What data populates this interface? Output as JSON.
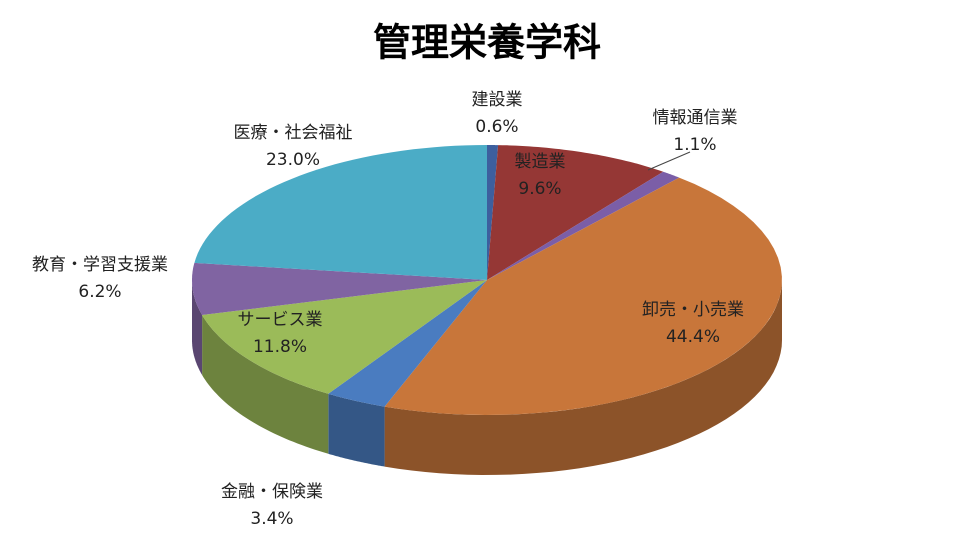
{
  "chart_data": {
    "type": "pie3d",
    "title": "管理栄養学科",
    "categories": [
      "建設業",
      "製造業",
      "情報通信業",
      "卸売・小売業",
      "金融・保険業",
      "サービス業",
      "教育・学習支援業",
      "医療・社会福祉"
    ],
    "values": [
      0.6,
      9.6,
      1.1,
      44.4,
      3.4,
      11.8,
      6.2,
      23.0
    ],
    "value_labels": [
      "0.6%",
      "9.6%",
      "1.1%",
      "44.4%",
      "3.4%",
      "11.8%",
      "6.2%",
      "23.0%"
    ],
    "colors": [
      "#3d5f9e",
      "#953735",
      "#7b5ea7",
      "#c8763a",
      "#4a7cc0",
      "#9bbb59",
      "#8064a2",
      "#4bacc6"
    ]
  }
}
